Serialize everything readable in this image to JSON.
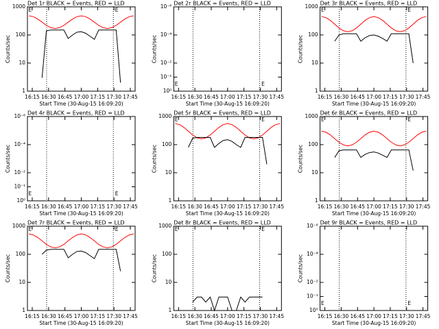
{
  "chart_data": [
    {
      "type": "line",
      "title": "Det 1r BLACK = Events, RED = LLD",
      "ylabel": "Counts/sec",
      "xlabel": "Start Time (30-Aug-15 16:09:20)",
      "ylog": true,
      "xlim": [
        10.6,
        109.4
      ],
      "ylim": [
        1,
        1000
      ],
      "yticks": [
        1,
        10,
        100,
        1000
      ],
      "xticks": [
        {
          "value": 15,
          "label": "16:15"
        },
        {
          "value": 30,
          "label": "16:30"
        },
        {
          "value": 45,
          "label": "16:45"
        },
        {
          "value": 60,
          "label": "17:00"
        },
        {
          "value": 75,
          "label": "17:15"
        },
        {
          "value": 90,
          "label": "17:30"
        },
        {
          "value": 105,
          "label": "17:45"
        }
      ],
      "vlines": [
        28.2,
        89.4
      ],
      "event_label": "E",
      "event_x": [
        13,
        92.5
      ],
      "x": [
        12,
        16,
        20,
        24,
        28,
        32,
        36,
        40,
        44,
        48,
        52,
        56,
        60,
        64,
        68,
        72,
        76,
        80,
        84,
        88,
        92,
        96,
        100,
        104,
        108
      ],
      "series": [
        {
          "color": "#ff0000",
          "values": [
            480,
            448,
            370,
            286,
            220,
            182,
            170,
            182,
            220,
            286,
            370,
            448,
            480,
            448,
            370,
            286,
            220,
            182,
            170,
            182,
            220,
            286,
            370,
            448,
            480
          ]
        },
        {
          "color": "#000000",
          "values": [
            null,
            null,
            null,
            3,
            140,
            150,
            150,
            150,
            150,
            75,
            100,
            125,
            130,
            115,
            90,
            70,
            150,
            150,
            150,
            150,
            150,
            2,
            null,
            null,
            null
          ]
        }
      ]
    },
    {
      "type": "line",
      "title": "Det 2r BLACK = Events, RED = LLD",
      "ylabel": "Counts/sec",
      "xlabel": "Start Time (30-Aug-15 16:09:20)",
      "ylog": true,
      "xlim": [
        10.6,
        109.4
      ],
      "ylim": [
        1,
        1e-06
      ],
      "yticks": [
        {
          "value": 1e-06,
          "label": "10⁻⁶"
        },
        {
          "value": 0.0001,
          "label": "10⁻⁴"
        },
        {
          "value": 0.01,
          "label": "10⁻²"
        },
        {
          "value": 0.1,
          "label": "10⁻¹"
        },
        {
          "value": 1,
          "label": "10⁰"
        }
      ],
      "xticks": [
        {
          "value": 15,
          "label": "16:15"
        },
        {
          "value": 30,
          "label": "16:30"
        },
        {
          "value": 45,
          "label": "16:45"
        },
        {
          "value": 60,
          "label": "17:00"
        },
        {
          "value": 75,
          "label": "17:15"
        },
        {
          "value": 90,
          "label": "17:30"
        },
        {
          "value": 105,
          "label": "17:45"
        }
      ],
      "vlines": [
        28.2,
        89.4
      ],
      "event_label": "E",
      "event_x": [
        13,
        92.5
      ],
      "series": []
    },
    {
      "type": "line",
      "title": "Det 3r BLACK = Events, RED = LLD",
      "ylabel": "Counts/sec",
      "xlabel": "Start Time (30-Aug-15 16:09:20)",
      "ylog": true,
      "xlim": [
        10.6,
        109.4
      ],
      "ylim": [
        1,
        1000
      ],
      "yticks": [
        1,
        10,
        100,
        1000
      ],
      "xticks": [
        {
          "value": 15,
          "label": "16:15"
        },
        {
          "value": 30,
          "label": "16:30"
        },
        {
          "value": 45,
          "label": "16:45"
        },
        {
          "value": 60,
          "label": "17:00"
        },
        {
          "value": 75,
          "label": "17:15"
        },
        {
          "value": 90,
          "label": "17:30"
        },
        {
          "value": 105,
          "label": "17:45"
        }
      ],
      "vlines": [
        28.2,
        89.4
      ],
      "event_label": "E",
      "event_x": [
        13,
        92.5
      ],
      "x": [
        12,
        16,
        20,
        24,
        28,
        32,
        36,
        40,
        44,
        48,
        52,
        56,
        60,
        64,
        68,
        72,
        76,
        80,
        84,
        88,
        92,
        96,
        100,
        104,
        108
      ],
      "series": [
        {
          "color": "#ff0000",
          "values": [
            450,
            415,
            330,
            242,
            177,
            141,
            130,
            141,
            177,
            242,
            330,
            415,
            450,
            415,
            330,
            242,
            177,
            141,
            130,
            141,
            177,
            242,
            330,
            415,
            450
          ]
        },
        {
          "color": "#000000",
          "values": [
            null,
            null,
            null,
            60,
            100,
            110,
            110,
            110,
            110,
            60,
            80,
            95,
            100,
            90,
            75,
            60,
            110,
            110,
            110,
            110,
            110,
            10,
            null,
            null,
            null
          ]
        }
      ]
    },
    {
      "type": "line",
      "title": "Det 4r BLACK = Events, RED = LLD",
      "ylabel": "Counts/sec",
      "xlabel": "Start Time (30-Aug-15 16:09:20)",
      "ylog": true,
      "xlim": [
        10.6,
        109.4
      ],
      "ylim": [
        1,
        1e-06
      ],
      "yticks": [
        {
          "value": 1e-06,
          "label": "10⁻⁶"
        },
        {
          "value": 0.0001,
          "label": "10⁻⁴"
        },
        {
          "value": 0.01,
          "label": "10⁻²"
        },
        {
          "value": 0.1,
          "label": "10⁻¹"
        },
        {
          "value": 1,
          "label": "10⁰"
        }
      ],
      "xticks": [
        {
          "value": 15,
          "label": "16:15"
        },
        {
          "value": 30,
          "label": "16:30"
        },
        {
          "value": 45,
          "label": "16:45"
        },
        {
          "value": 60,
          "label": "17:00"
        },
        {
          "value": 75,
          "label": "17:15"
        },
        {
          "value": 90,
          "label": "17:30"
        },
        {
          "value": 105,
          "label": "17:45"
        }
      ],
      "vlines": [
        28.2,
        89.4
      ],
      "event_label": "E",
      "event_x": [
        13,
        92.5
      ],
      "series": []
    },
    {
      "type": "line",
      "title": "Det 5r BLACK = Events, RED = LLD",
      "ylabel": "Counts/sec",
      "xlabel": "Start Time (30-Aug-15 16:09:20)",
      "ylog": true,
      "xlim": [
        10.6,
        109.4
      ],
      "ylim": [
        1,
        1000
      ],
      "yticks": [
        1,
        10,
        100,
        1000
      ],
      "xticks": [
        {
          "value": 15,
          "label": "16:15"
        },
        {
          "value": 30,
          "label": "16:30"
        },
        {
          "value": 45,
          "label": "16:45"
        },
        {
          "value": 60,
          "label": "17:00"
        },
        {
          "value": 75,
          "label": "17:15"
        },
        {
          "value": 90,
          "label": "17:30"
        },
        {
          "value": 105,
          "label": "17:45"
        }
      ],
      "vlines": [
        28.2,
        89.4
      ],
      "event_label": "E",
      "event_x": [
        13,
        92.5
      ],
      "x": [
        12,
        16,
        20,
        24,
        28,
        32,
        36,
        40,
        44,
        48,
        52,
        56,
        60,
        64,
        68,
        72,
        76,
        80,
        84,
        88,
        92,
        96,
        100,
        104,
        108
      ],
      "series": [
        {
          "color": "#ff0000",
          "values": [
            560,
            515,
            409,
            299,
            219,
            174,
            160,
            174,
            219,
            299,
            409,
            515,
            560,
            515,
            409,
            299,
            219,
            174,
            160,
            174,
            219,
            299,
            409,
            515,
            560
          ]
        },
        {
          "color": "#000000",
          "values": [
            null,
            null,
            null,
            80,
            170,
            180,
            180,
            180,
            180,
            80,
            110,
            140,
            150,
            130,
            100,
            80,
            180,
            180,
            180,
            180,
            180,
            20,
            null,
            null,
            null
          ]
        }
      ]
    },
    {
      "type": "line",
      "title": "Det 6r BLACK = Events, RED = LLD",
      "ylabel": "Counts/sec",
      "xlabel": "Start Time (30-Aug-15 16:09:20)",
      "ylog": true,
      "xlim": [
        10.6,
        109.4
      ],
      "ylim": [
        1,
        1000
      ],
      "yticks": [
        1,
        10,
        100,
        1000
      ],
      "xticks": [
        {
          "value": 15,
          "label": "16:15"
        },
        {
          "value": 30,
          "label": "16:30"
        },
        {
          "value": 45,
          "label": "16:45"
        },
        {
          "value": 60,
          "label": "17:00"
        },
        {
          "value": 75,
          "label": "17:15"
        },
        {
          "value": 90,
          "label": "17:30"
        },
        {
          "value": 105,
          "label": "17:45"
        }
      ],
      "vlines": [
        28.2,
        89.4
      ],
      "event_label": "E",
      "event_x": [
        13,
        92.5
      ],
      "x": [
        12,
        16,
        20,
        24,
        28,
        32,
        36,
        40,
        44,
        48,
        52,
        56,
        60,
        64,
        68,
        72,
        76,
        80,
        84,
        88,
        92,
        96,
        100,
        104,
        108
      ],
      "series": [
        {
          "color": "#ff0000",
          "values": [
            300,
            277,
            222,
            164,
            122,
            98,
            90,
            98,
            122,
            164,
            222,
            277,
            300,
            277,
            222,
            164,
            122,
            98,
            90,
            98,
            122,
            164,
            222,
            277,
            300
          ]
        },
        {
          "color": "#000000",
          "values": [
            null,
            null,
            null,
            35,
            60,
            65,
            65,
            65,
            65,
            35,
            45,
            52,
            55,
            50,
            42,
            35,
            65,
            65,
            65,
            65,
            65,
            12,
            null,
            null,
            null
          ]
        }
      ]
    },
    {
      "type": "line",
      "title": "Det 7r BLACK = Events, RED = LLD",
      "ylabel": "Counts/sec",
      "xlabel": "Start Time (30-Aug-15 16:09:20)",
      "ylog": true,
      "xlim": [
        10.6,
        109.4
      ],
      "ylim": [
        1,
        1000
      ],
      "yticks": [
        1,
        10,
        100,
        1000
      ],
      "xticks": [
        {
          "value": 15,
          "label": "16:15"
        },
        {
          "value": 30,
          "label": "16:30"
        },
        {
          "value": 45,
          "label": "16:45"
        },
        {
          "value": 60,
          "label": "17:00"
        },
        {
          "value": 75,
          "label": "17:15"
        },
        {
          "value": 90,
          "label": "17:30"
        },
        {
          "value": 105,
          "label": "17:45"
        }
      ],
      "vlines": [
        28.2,
        89.4
      ],
      "event_label": "E",
      "event_x": [
        13,
        92.5
      ],
      "x": [
        12,
        16,
        20,
        24,
        28,
        32,
        36,
        40,
        44,
        48,
        52,
        56,
        60,
        64,
        68,
        72,
        76,
        80,
        84,
        88,
        92,
        96,
        100,
        104,
        108
      ],
      "series": [
        {
          "color": "#ff0000",
          "values": [
            530,
            491,
            399,
            300,
            225,
            183,
            170,
            183,
            225,
            300,
            399,
            491,
            530,
            491,
            399,
            300,
            225,
            183,
            170,
            183,
            225,
            300,
            399,
            491,
            530
          ]
        },
        {
          "color": "#000000",
          "values": [
            null,
            null,
            null,
            100,
            140,
            150,
            150,
            150,
            150,
            75,
            100,
            125,
            130,
            115,
            90,
            70,
            150,
            150,
            150,
            150,
            150,
            25,
            null,
            null,
            null
          ]
        }
      ]
    },
    {
      "type": "line",
      "title": "Det 8r BLACK = Events, RED = LLD",
      "ylabel": "Counts/sec",
      "xlabel": "Start Time (30-Aug-15 16:09:20)",
      "ylog": true,
      "xlim": [
        10.6,
        109.4
      ],
      "ylim": [
        1,
        1000
      ],
      "yticks": [
        1,
        10,
        100,
        1000
      ],
      "xticks": [
        {
          "value": 15,
          "label": "16:15"
        },
        {
          "value": 30,
          "label": "16:30"
        },
        {
          "value": 45,
          "label": "16:45"
        },
        {
          "value": 60,
          "label": "17:00"
        },
        {
          "value": 75,
          "label": "17:15"
        },
        {
          "value": 90,
          "label": "17:30"
        },
        {
          "value": 105,
          "label": "17:45"
        }
      ],
      "vlines": [
        28.2,
        89.4
      ],
      "event_label": "E",
      "event_x": [
        13,
        92.5
      ],
      "x": [
        12,
        16,
        20,
        24,
        28,
        32,
        36,
        40,
        44,
        48,
        52,
        56,
        60,
        64,
        68,
        72,
        76,
        80,
        84,
        88,
        92,
        96,
        100,
        104,
        108
      ],
      "series": [
        {
          "color": "#000000",
          "values": [
            null,
            null,
            null,
            null,
            2,
            3,
            3,
            2,
            3,
            1,
            3,
            3,
            3,
            1,
            1,
            3,
            2,
            3,
            3,
            3,
            3,
            null,
            null,
            null,
            null
          ]
        }
      ]
    },
    {
      "type": "line",
      "title": "Det 9r BLACK = Events, RED = LLD",
      "ylabel": "Counts/sec",
      "xlabel": "Start Time (30-Aug-15 16:09:20)",
      "ylog": true,
      "xlim": [
        10.6,
        109.4
      ],
      "ylim": [
        1,
        1e-06
      ],
      "yticks": [
        {
          "value": 1e-06,
          "label": "10⁻⁶"
        },
        {
          "value": 0.0001,
          "label": "10⁻⁴"
        },
        {
          "value": 0.01,
          "label": "10⁻²"
        },
        {
          "value": 0.1,
          "label": "10⁻¹"
        },
        {
          "value": 1,
          "label": "10⁰"
        }
      ],
      "xticks": [
        {
          "value": 15,
          "label": "16:15"
        },
        {
          "value": 30,
          "label": "16:30"
        },
        {
          "value": 45,
          "label": "16:45"
        },
        {
          "value": 60,
          "label": "17:00"
        },
        {
          "value": 75,
          "label": "17:15"
        },
        {
          "value": 90,
          "label": "17:30"
        },
        {
          "value": 105,
          "label": "17:45"
        }
      ],
      "vlines": [
        28.2,
        89.4
      ],
      "event_label": "E",
      "event_x": [
        13,
        92.5
      ],
      "series": []
    }
  ]
}
